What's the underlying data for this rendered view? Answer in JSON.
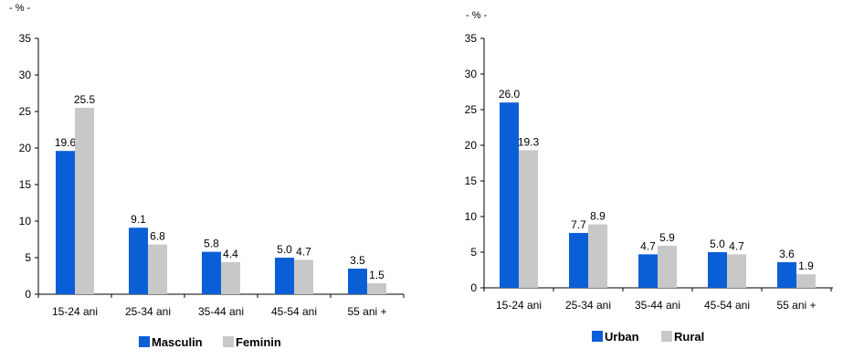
{
  "chart_data": [
    {
      "type": "bar",
      "unit_label": "- % -",
      "categories": [
        "15-24 ani",
        "25-34 ani",
        "35-44 ani",
        "45-54 ani",
        "55 ani +"
      ],
      "ylim": [
        0,
        35
      ],
      "yticks": [
        0,
        5,
        10,
        15,
        20,
        25,
        30,
        35
      ],
      "grid": false,
      "legend_position": "bottom",
      "series": [
        {
          "name": "Masculin",
          "color": "#0b5fd6",
          "values": [
            19.6,
            9.1,
            5.8,
            5.0,
            3.5
          ],
          "labels": [
            "19.6",
            "9.1",
            "5.8",
            "5.0",
            "3.5"
          ]
        },
        {
          "name": "Feminin",
          "color": "#c8c8c8",
          "values": [
            25.5,
            6.8,
            4.4,
            4.7,
            1.5
          ],
          "labels": [
            "25.5",
            "6.8",
            "4.4",
            "4.7",
            "1.5"
          ]
        }
      ]
    },
    {
      "type": "bar",
      "unit_label": "- % -",
      "categories": [
        "15-24 ani",
        "25-34 ani",
        "35-44 ani",
        "45-54 ani",
        "55 ani +"
      ],
      "ylim": [
        0,
        35
      ],
      "yticks": [
        0,
        5,
        10,
        15,
        20,
        25,
        30,
        35
      ],
      "grid": false,
      "legend_position": "bottom",
      "series": [
        {
          "name": "Urban",
          "color": "#0b5fd6",
          "values": [
            26.0,
            7.7,
            4.7,
            5.0,
            3.6
          ],
          "labels": [
            "26.0",
            "7.7",
            "4.7",
            "5.0",
            "3.6"
          ]
        },
        {
          "name": "Rural",
          "color": "#c8c8c8",
          "values": [
            19.3,
            8.9,
            5.9,
            4.7,
            1.9
          ],
          "labels": [
            "19.3",
            "8.9",
            "5.9",
            "4.7",
            "1.9"
          ]
        }
      ]
    }
  ]
}
